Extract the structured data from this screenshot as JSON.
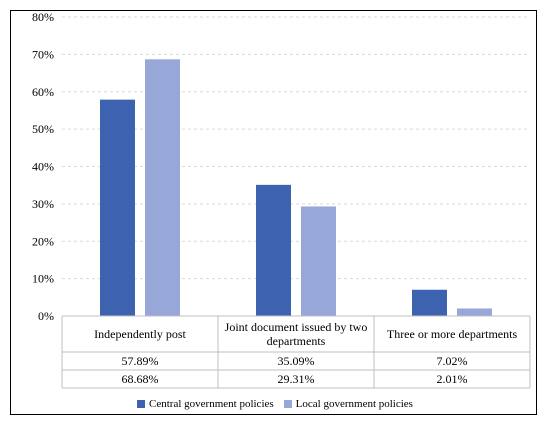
{
  "colors": {
    "central": "#3d63b0",
    "local": "#97a8d8",
    "grid": "#d9d9d9",
    "axis": "#bfbfbf"
  },
  "chart_data": {
    "type": "bar",
    "title": "",
    "xlabel": "",
    "ylabel": "",
    "ylim": [
      0,
      0.8
    ],
    "yticks": [
      0,
      0.1,
      0.2,
      0.3,
      0.4,
      0.5,
      0.6,
      0.7,
      0.8
    ],
    "ytick_labels": [
      "0%",
      "10%",
      "20%",
      "30%",
      "40%",
      "50%",
      "60%",
      "70%",
      "80%"
    ],
    "grid": true,
    "legend_position": "bottom",
    "categories": [
      [
        "Independently post"
      ],
      [
        "Joint document issued by two",
        "departments"
      ],
      [
        "Three or more departments"
      ]
    ],
    "series": [
      {
        "name": "Central government policies",
        "values": [
          0.5789,
          0.3509,
          0.0702
        ],
        "labels": [
          "57.89%",
          "35.09%",
          "7.02%"
        ]
      },
      {
        "name": "Local government policies",
        "values": [
          0.6868,
          0.2931,
          0.0201
        ],
        "labels": [
          "68.68%",
          "29.31%",
          "2.01%"
        ]
      }
    ]
  }
}
